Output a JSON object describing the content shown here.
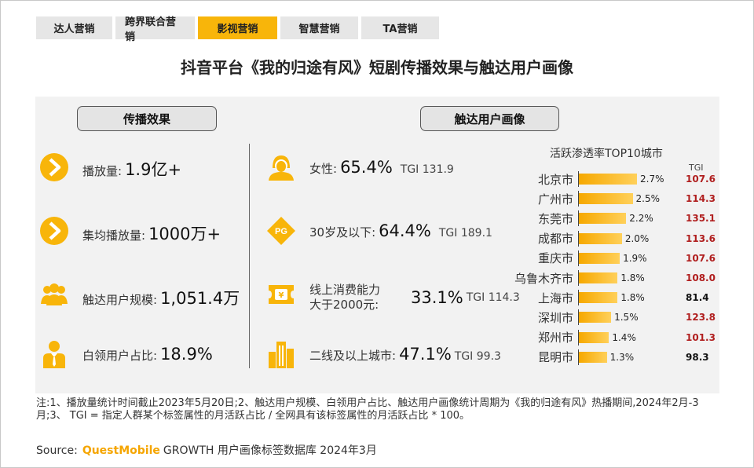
{
  "tabs": [
    "达人营销",
    "跨界联合营销",
    "影视营销",
    "智慧营销",
    "TA营销"
  ],
  "active_tab": 2,
  "title": "抖音平台《我的归途有风》短剧传播效果与触达用户画像",
  "sections": {
    "left": "传播效果",
    "right": "触达用户画像"
  },
  "spread": [
    {
      "label": "播放量:",
      "value": "1.9亿+",
      "icon": "play-icon"
    },
    {
      "label": "集均播放量:",
      "value": "1000万+",
      "icon": "play-icon"
    },
    {
      "label": "触达用户规模:",
      "value": "1,051.4万",
      "icon": "users-icon"
    },
    {
      "label": "白领用户占比:",
      "value": "18.9%",
      "icon": "white-collar-icon"
    }
  ],
  "profile": [
    {
      "label": "女性:",
      "value": "65.4%",
      "tgi": "TGI 131.9",
      "icon": "female-icon"
    },
    {
      "label": "30岁及以下:",
      "value": "64.4%",
      "tgi": "TGI 189.1",
      "icon": "pg-badge-icon"
    },
    {
      "label_line1": "线上消费能力",
      "label_line2": "大于2000元:",
      "value": "33.1%",
      "tgi": "TGI 114.3",
      "icon": "ticket-icon"
    },
    {
      "label": "二线及以上城市:",
      "value": "47.1%",
      "tgi": "TGI 99.3",
      "icon": "city-buildings-icon"
    }
  ],
  "chart_data": {
    "type": "bar",
    "title": "活跃渗透率TOP10城市",
    "tgi_header": "TGI",
    "categories": [
      "北京市",
      "广州市",
      "东莞市",
      "成都市",
      "重庆市",
      "乌鲁木齐市",
      "上海市",
      "深圳市",
      "郑州市",
      "昆明市"
    ],
    "values": [
      2.7,
      2.5,
      2.2,
      2.0,
      1.9,
      1.8,
      1.8,
      1.5,
      1.4,
      1.3
    ],
    "value_labels": [
      "2.7%",
      "2.5%",
      "2.2%",
      "2.0%",
      "1.9%",
      "1.8%",
      "1.8%",
      "1.5%",
      "1.4%",
      "1.3%"
    ],
    "tgi": [
      "107.6",
      "114.3",
      "135.1",
      "113.6",
      "107.6",
      "108.0",
      "81.4",
      "123.8",
      "101.3",
      "98.3"
    ],
    "tgi_high_color": "#b01e1e",
    "tgi_low_color": "#111111",
    "bar_color": "#f8b50a",
    "xlim": [
      0,
      3
    ]
  },
  "notes": "注:1、播放量统计时间截止2023年5月20日;2、触达用户规模、白领用户占比、触达用户画像统计周期为《我的归途有风》热播期间,2024年2月-3月;3、 TGI = 指定人群某个标签属性的月活跃占比 / 全网具有该标签属性的月活跃占比 * 100。",
  "source": {
    "prefix": "Source:",
    "brand": "QuestMobile",
    "rest": "GROWTH 用户画像标签数据库 2024年3月"
  },
  "colors": {
    "accent": "#f8b50a",
    "panel_bg": "#f2f2f2"
  }
}
